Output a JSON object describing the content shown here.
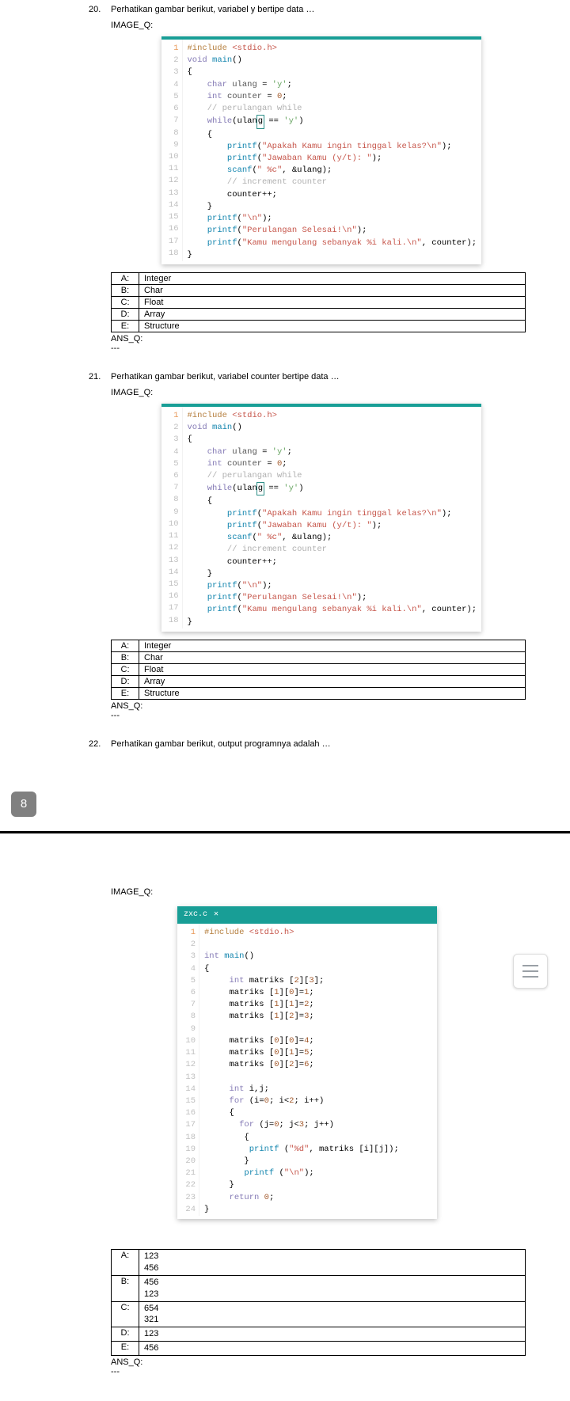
{
  "page1": {
    "q20": {
      "num": "20.",
      "text": "Perhatikan gambar berikut, variabel y bertipe data …",
      "image_label": "IMAGE_Q:",
      "answers": [
        {
          "letter": "A:",
          "text": "Integer"
        },
        {
          "letter": "B:",
          "text": "Char"
        },
        {
          "letter": "C:",
          "text": "Float"
        },
        {
          "letter": "D:",
          "text": "Array"
        },
        {
          "letter": "E:",
          "text": "Structure"
        }
      ],
      "ans_label": "ANS_Q:",
      "dashes": "---"
    },
    "q21": {
      "num": "21.",
      "text": "Perhatikan gambar berikut, variabel counter bertipe data …",
      "image_label": "IMAGE_Q:",
      "answers": [
        {
          "letter": "A:",
          "text": "Integer"
        },
        {
          "letter": "B:",
          "text": "Char"
        },
        {
          "letter": "C:",
          "text": "Float"
        },
        {
          "letter": "D:",
          "text": "Array"
        },
        {
          "letter": "E:",
          "text": "Structure"
        }
      ],
      "ans_label": "ANS_Q:",
      "dashes": "---"
    },
    "q22": {
      "num": "22.",
      "text": "Perhatikan gambar berikut, output programnya adalah …"
    },
    "code_loop": {
      "gutter": [
        "1",
        "2",
        "3",
        "4",
        "5",
        "6",
        "7",
        "8",
        "9",
        "10",
        "11",
        "12",
        "13",
        "14",
        "15",
        "16",
        "17",
        "18"
      ],
      "gutter_first_color": "#e89a5b",
      "tokens": {
        "include": "#include",
        "stdio": "<stdio.h>",
        "void": "void",
        "main": "main",
        "char": "char",
        "ulang": "ulang",
        "ychar": "'y'",
        "int": "int",
        "counter": "counter",
        "zero": "0",
        "cm1": "// perulangan while",
        "while": "while",
        "eq": " == ",
        "printf": "printf",
        "scanf": "scanf",
        "str1": "\"Apakah Kamu ingin tinggal kelas?\\n\"",
        "str2": "\"Jawaban Kamu (y/t): \"",
        "str3": "\" %c\"",
        "aulang": ", &ulang);",
        "cm2": "// increment counter",
        "cpp": "counter++;",
        "nl": "\"\\n\"",
        "str4": "\"Perulangan Selesai!\\n\"",
        "str5": "\"Kamu mengulang sebanyak %i kali.\\n\"",
        "ctr": ", counter);"
      }
    },
    "page_number": "8"
  },
  "page2": {
    "image_label": "IMAGE_Q:",
    "tab_name": "zxc.c",
    "tab_x": "✕",
    "code": {
      "gutter": [
        "1",
        "2",
        "3",
        "4",
        "5",
        "6",
        "7",
        "8",
        "9",
        "10",
        "11",
        "12",
        "13",
        "14",
        "15",
        "16",
        "17",
        "18",
        "19",
        "20",
        "21",
        "22",
        "23",
        "24"
      ],
      "tokens": {
        "include": "#include",
        "stdio": "<stdio.h>",
        "int": "int",
        "main": "main",
        "l_int_matriks": "int matriks [2][3];",
        "m_1_0": "matriks [1][0]=1;",
        "m_1_1": "matriks [1][1]=2;",
        "m_1_2": "matriks [1][2]=3;",
        "m_0_0": "matriks [0][0]=4;",
        "m_0_1": "matriks [0][1]=5;",
        "m_0_2": "matriks [0][2]=6;",
        "ij": "int i,j;",
        "for1": "for (i=0; i<2; i++)",
        "for2": "for (j=0; j<3; j++)",
        "printf": "printf",
        "s_d": "\"%d\"",
        "mat_ij": ", matriks [i][j]);",
        "s_nl": "\"\\n\"",
        "return": "return",
        "zero": "0"
      }
    },
    "answers": [
      {
        "letter": "A:",
        "text": "123\n456"
      },
      {
        "letter": "B:",
        "text": "456\n123"
      },
      {
        "letter": "C:",
        "text": "654\n321"
      },
      {
        "letter": "D:",
        "text": "123"
      },
      {
        "letter": "E:",
        "text": "456"
      }
    ],
    "ans_label": "ANS_Q:",
    "dashes": "---"
  },
  "colors": {
    "teal": "#189e96",
    "gray_pagenum": "#808080",
    "preproc": "#b57e3d",
    "string": "#c6554a",
    "keyword": "#847ab5",
    "func": "#1385ae",
    "char": "#6aa664",
    "num": "#a45a2c",
    "comment": "#b0b0b0"
  }
}
